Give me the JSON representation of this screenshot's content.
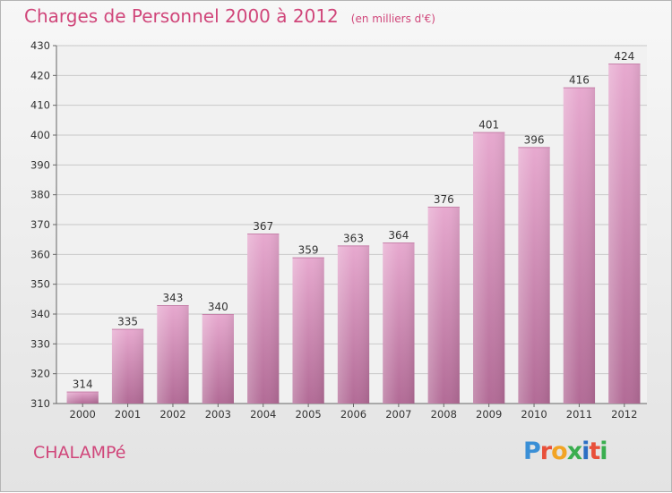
{
  "header": {
    "title": "Charges de Personnel 2000 à 2012",
    "subtitle": "(en milliers d'€)"
  },
  "footer": {
    "town": "CHALAMPé",
    "logo": "Proxiti",
    "logo_colors": [
      "#3a8fd6",
      "#e8503a",
      "#f2a424",
      "#3aae4f",
      "#2c6fc4",
      "#e8503a",
      "#3aae4f"
    ]
  },
  "colors": {
    "bar_top": "#e7a9cf",
    "bar_bottom": "#b26b96",
    "accent": "#d0467a"
  },
  "chart_data": {
    "type": "bar",
    "title": "Charges de Personnel 2000 à 2012",
    "subtitle": "(en milliers d'€)",
    "categories": [
      "2000",
      "2001",
      "2002",
      "2003",
      "2004",
      "2005",
      "2006",
      "2007",
      "2008",
      "2009",
      "2010",
      "2011",
      "2012"
    ],
    "values": [
      314,
      335,
      343,
      340,
      367,
      359,
      363,
      364,
      376,
      401,
      396,
      416,
      424
    ],
    "ylim": [
      310,
      430
    ],
    "yticks": [
      310,
      320,
      330,
      340,
      350,
      360,
      370,
      380,
      390,
      400,
      410,
      420,
      430
    ],
    "grid": true,
    "legend": "none"
  }
}
